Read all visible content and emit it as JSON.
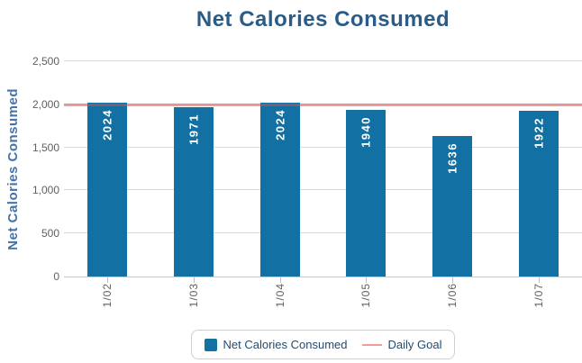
{
  "title": "Net Calories Consumed",
  "chart_data": {
    "type": "bar",
    "title": "Net Calories Consumed",
    "categories": [
      "1/02",
      "1/03",
      "1/04",
      "1/05",
      "1/06",
      "1/07"
    ],
    "series": [
      {
        "name": "Net Calories Consumed",
        "type": "column",
        "values": [
          2024,
          1971,
          2024,
          1940,
          1636,
          1922
        ]
      },
      {
        "name": "Daily Goal",
        "type": "line",
        "value": 2000
      }
    ],
    "xlabel": "",
    "ylabel": "Net Calories Consumed",
    "ylim": [
      0,
      2500
    ],
    "ytick_step": 500,
    "ytick_labels": [
      "0",
      "500",
      "1,000",
      "1,500",
      "2,000",
      "2,500"
    ],
    "grid": true,
    "legend_position": "bottom",
    "bar_value_labels": [
      "2024",
      "1971",
      "2024",
      "1940",
      "1636",
      "1922"
    ]
  },
  "legend": {
    "items": [
      {
        "label": "Net Calories Consumed",
        "swatch": "square"
      },
      {
        "label": "Daily Goal",
        "swatch": "line"
      }
    ]
  },
  "colors": {
    "bar": "#1270A2",
    "goal_line": "rgba(226,74,74,0.55)",
    "legend_line_swatch": "#F09C9C",
    "title_text": "#2B5C87",
    "y_axis_title_text": "#4572A7",
    "tick_label_text": "#606060",
    "gridline": "#D8D8D8"
  }
}
